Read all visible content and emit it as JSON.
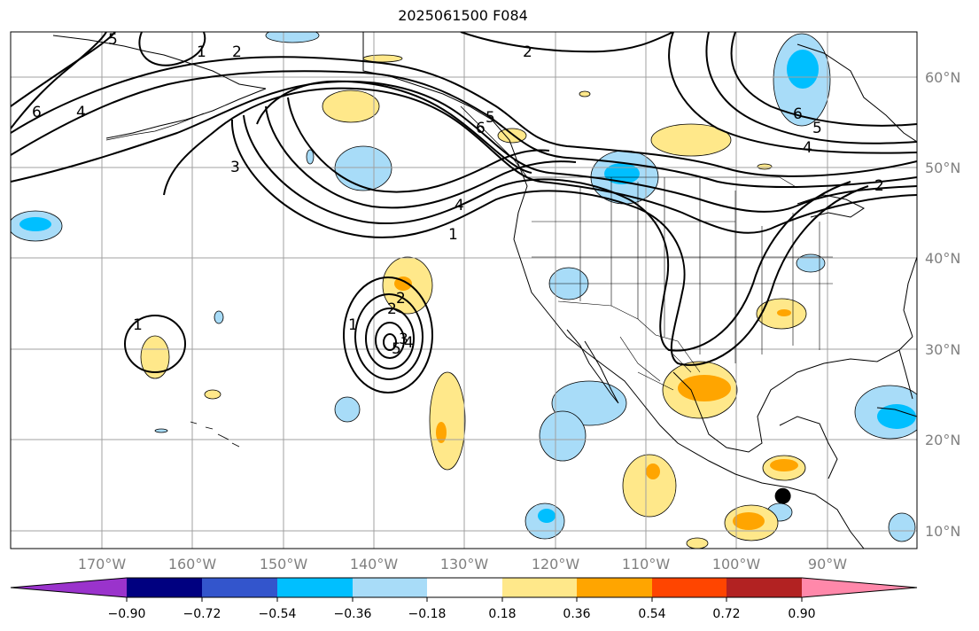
{
  "title": "2025061500 F084",
  "map": {
    "lon_ticks": [
      "170°W",
      "160°W",
      "150°W",
      "140°W",
      "130°W",
      "120°W",
      "110°W",
      "100°W",
      "90°W"
    ],
    "lat_ticks": [
      "60°N",
      "50°N",
      "40°N",
      "30°N",
      "20°N",
      "10°N"
    ],
    "extent": {
      "lon_min": -180,
      "lon_max": -80,
      "lat_min": 8,
      "lat_max": 65
    },
    "marker": {
      "lon": -94.8,
      "lat": 13.8,
      "color": "#000000"
    }
  },
  "colorbar": {
    "tick_labels": [
      "−0.90",
      "−0.72",
      "−0.54",
      "−0.36",
      "−0.18",
      "0.18",
      "0.36",
      "0.54",
      "0.72",
      "0.90"
    ],
    "colors": [
      "#9a33cc",
      "#000080",
      "#3355cc",
      "#00bfff",
      "#a8dcf8",
      "#ffffff",
      "#ffe88a",
      "#ffa500",
      "#ff4500",
      "#b22222",
      "#ff88aa"
    ]
  },
  "contour_labels": [
    "1",
    "2",
    "4",
    "5",
    "6",
    "5",
    "6",
    "4",
    "2",
    "3",
    "2",
    "2",
    "1",
    "4",
    "5",
    "6",
    "1",
    "2",
    "3",
    "4",
    "5",
    "1"
  ]
}
